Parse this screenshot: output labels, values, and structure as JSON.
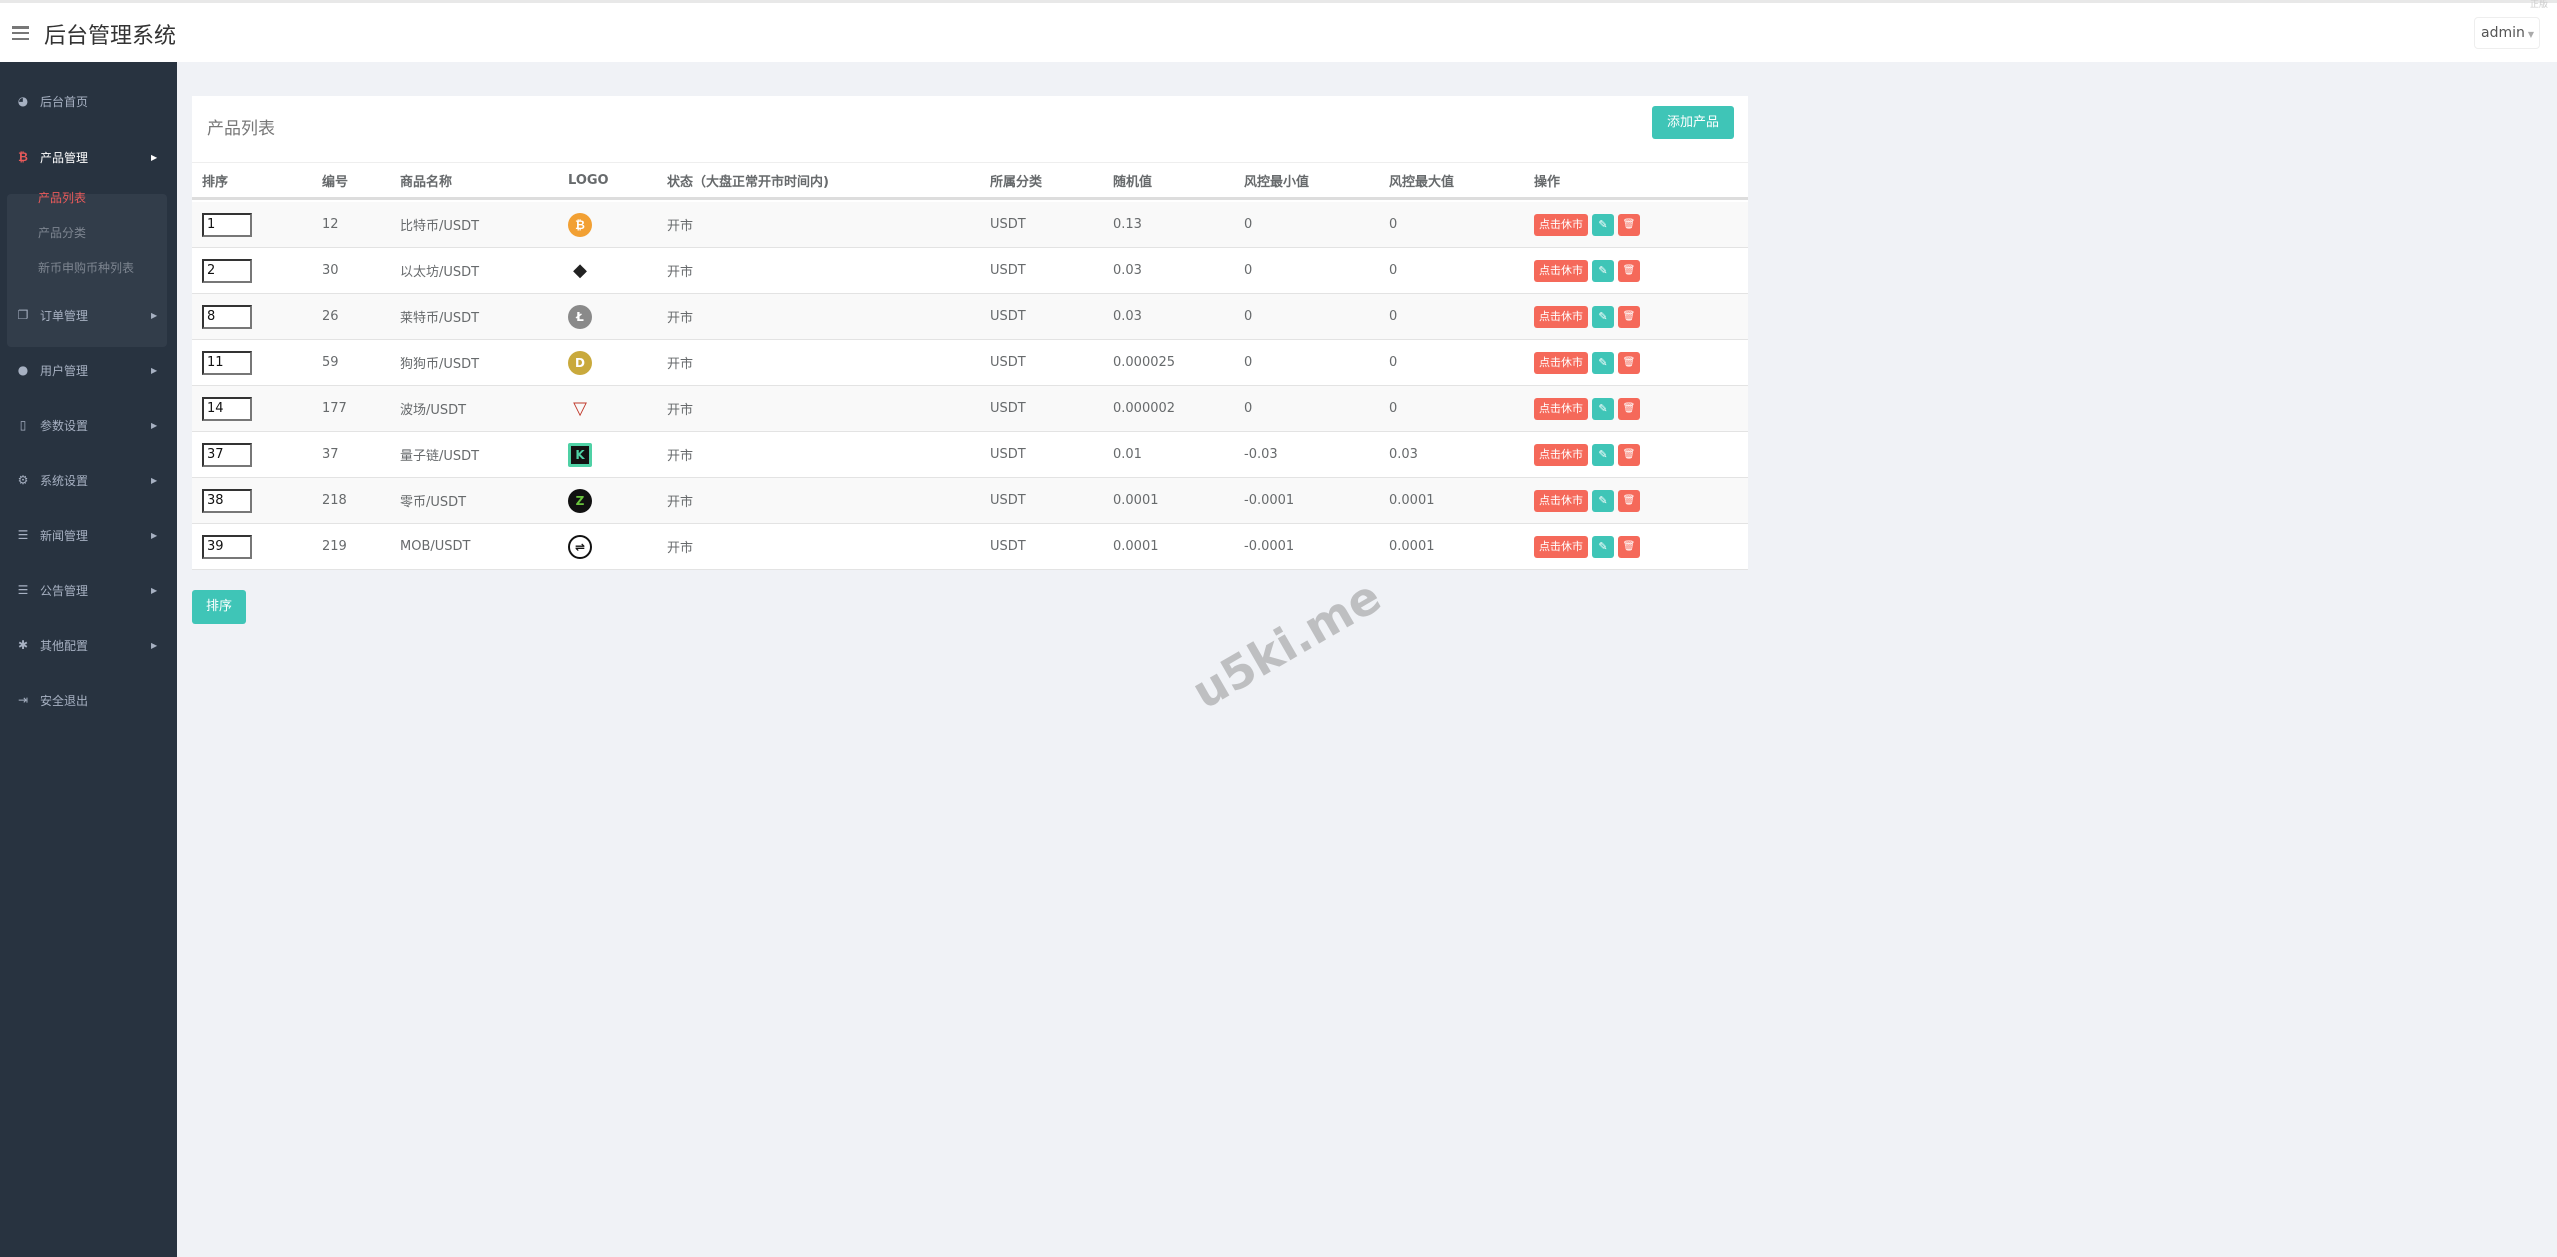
{
  "header": {
    "title": "后台管理系统",
    "user": "admin",
    "corner_text": "正版"
  },
  "sidebar": {
    "items": [
      {
        "label": "后台首页",
        "icon": "dashboard-icon"
      },
      {
        "label": "产品管理",
        "icon": "bitcoin-icon",
        "expanded": true,
        "children": [
          {
            "label": "产品列表",
            "active": true
          },
          {
            "label": "产品分类"
          },
          {
            "label": "新币申购币种列表"
          }
        ]
      },
      {
        "label": "订单管理",
        "icon": "copy-icon"
      },
      {
        "label": "用户管理",
        "icon": "user-icon"
      },
      {
        "label": "参数设置",
        "icon": "file-icon"
      },
      {
        "label": "系统设置",
        "icon": "cogs-icon"
      },
      {
        "label": "新闻管理",
        "icon": "list-icon"
      },
      {
        "label": "公告管理",
        "icon": "list-icon"
      },
      {
        "label": "其他配置",
        "icon": "gear-icon"
      },
      {
        "label": "安全退出",
        "icon": "sign-out-icon"
      }
    ]
  },
  "card": {
    "title": "产品列表",
    "add_label": "添加产品"
  },
  "table": {
    "columns": [
      "排序",
      "编号",
      "商品名称",
      "LOGO",
      "状态（大盘正常开市时间内)",
      "所属分类",
      "随机值",
      "风控最小值",
      "风控最大值",
      "操作"
    ],
    "action_label": "点击休市",
    "rows": [
      {
        "sort": "1",
        "id": "12",
        "name": "比特币/USDT",
        "logo": "bitcoin",
        "status": "开市",
        "category": "USDT",
        "random": "0.13",
        "min": "0",
        "max": "0"
      },
      {
        "sort": "2",
        "id": "30",
        "name": "以太坊/USDT",
        "logo": "ethereum",
        "status": "开市",
        "category": "USDT",
        "random": "0.03",
        "min": "0",
        "max": "0"
      },
      {
        "sort": "8",
        "id": "26",
        "name": "莱特币/USDT",
        "logo": "litecoin",
        "status": "开市",
        "category": "USDT",
        "random": "0.03",
        "min": "0",
        "max": "0"
      },
      {
        "sort": "11",
        "id": "59",
        "name": "狗狗币/USDT",
        "logo": "dogecoin",
        "status": "开市",
        "category": "USDT",
        "random": "0.000025",
        "min": "0",
        "max": "0"
      },
      {
        "sort": "14",
        "id": "177",
        "name": "波场/USDT",
        "logo": "tron",
        "status": "开市",
        "category": "USDT",
        "random": "0.000002",
        "min": "0",
        "max": "0"
      },
      {
        "sort": "37",
        "id": "37",
        "name": "量子链/USDT",
        "logo": "k-coin",
        "status": "开市",
        "category": "USDT",
        "random": "0.01",
        "min": "-0.03",
        "max": "0.03"
      },
      {
        "sort": "38",
        "id": "218",
        "name": "零币/USDT",
        "logo": "zcoin",
        "status": "开市",
        "category": "USDT",
        "random": "0.0001",
        "min": "-0.0001",
        "max": "0.0001"
      },
      {
        "sort": "39",
        "id": "219",
        "name": "MOB/USDT",
        "logo": "mob",
        "status": "开市",
        "category": "USDT",
        "random": "0.0001",
        "min": "-0.0001",
        "max": "0.0001"
      }
    ]
  },
  "sort_button": "排序",
  "watermark": "u5ki.me",
  "colors": {
    "sidebar": "#283340",
    "accent": "#3fc5b7",
    "danger": "#f5695a",
    "active": "#ea5a5a"
  }
}
